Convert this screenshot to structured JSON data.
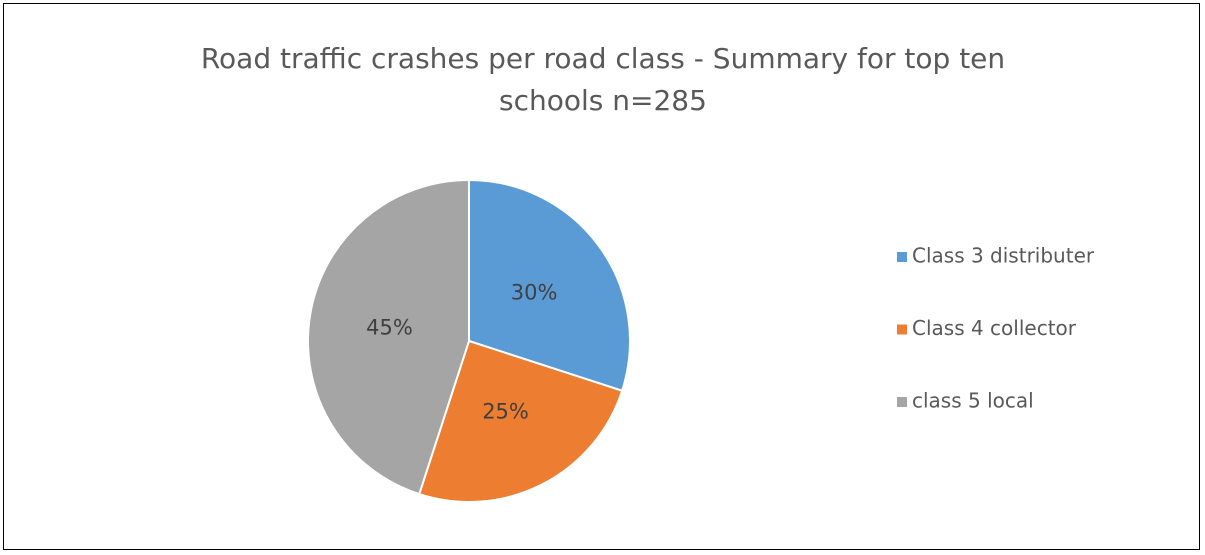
{
  "chart_data": {
    "type": "pie",
    "title": "Road traffic crashes per road class - Summary for top ten schools n=285",
    "categories": [
      "Class 3 distributer",
      "Class 4 collector",
      "class 5 local"
    ],
    "values": [
      30,
      25,
      45
    ],
    "value_labels": [
      "30%",
      "25%",
      "45%"
    ],
    "colors": [
      "#5b9bd5",
      "#ed7d31",
      "#a5a5a5"
    ],
    "legend": "right"
  }
}
